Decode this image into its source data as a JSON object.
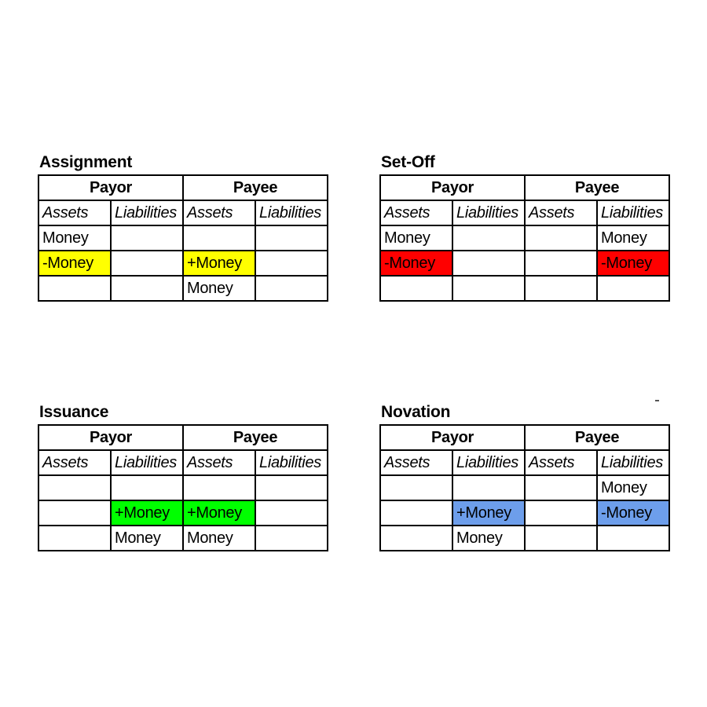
{
  "page": {
    "background": "#ffffff"
  },
  "highlight_colors": {
    "yellow": "#ffff00",
    "red": "#ff0000",
    "green": "#00ff00",
    "blue": "#6d9eeb"
  },
  "tables": [
    {
      "id": "assignment",
      "title": "Assignment",
      "column_groups": [
        "Payor",
        "Payee"
      ],
      "column_headers": [
        "Assets",
        "Liabilities",
        "Assets",
        "Liabilities"
      ],
      "rows": [
        [
          {
            "text": "Money"
          },
          {},
          {},
          {}
        ],
        [
          {
            "text": "-Money",
            "highlight": "yellow"
          },
          {},
          {
            "text": "+Money",
            "highlight": "yellow"
          },
          {}
        ],
        [
          {},
          {},
          {
            "text": "Money"
          },
          {}
        ]
      ]
    },
    {
      "id": "set-off",
      "title": "Set-Off",
      "column_groups": [
        "Payor",
        "Payee"
      ],
      "column_headers": [
        "Assets",
        "Liabilities",
        "Assets",
        "Liabilities"
      ],
      "rows": [
        [
          {
            "text": "Money"
          },
          {},
          {},
          {
            "text": "Money"
          }
        ],
        [
          {
            "text": "-Money",
            "highlight": "red"
          },
          {},
          {},
          {
            "text": "-Money",
            "highlight": "red"
          }
        ],
        [
          {},
          {},
          {},
          {}
        ]
      ]
    },
    {
      "id": "issuance",
      "title": "Issuance",
      "column_groups": [
        "Payor",
        "Payee"
      ],
      "column_headers": [
        "Assets",
        "Liabilities",
        "Assets",
        "Liabilities"
      ],
      "rows": [
        [
          {},
          {},
          {},
          {}
        ],
        [
          {},
          {
            "text": "+Money",
            "highlight": "green"
          },
          {
            "text": "+Money",
            "highlight": "green"
          },
          {}
        ],
        [
          {},
          {
            "text": "Money"
          },
          {
            "text": "Money"
          },
          {}
        ]
      ]
    },
    {
      "id": "novation",
      "title": "Novation",
      "column_groups": [
        "Payor",
        "Payee"
      ],
      "column_headers": [
        "Assets",
        "Liabilities",
        "Assets",
        "Liabilities"
      ],
      "rows": [
        [
          {},
          {},
          {},
          {
            "text": "Money"
          }
        ],
        [
          {},
          {
            "text": "+Money",
            "highlight": "blue"
          },
          {},
          {
            "text": "-Money",
            "highlight": "blue"
          }
        ],
        [
          {},
          {
            "text": "Money"
          },
          {},
          {}
        ]
      ]
    }
  ]
}
